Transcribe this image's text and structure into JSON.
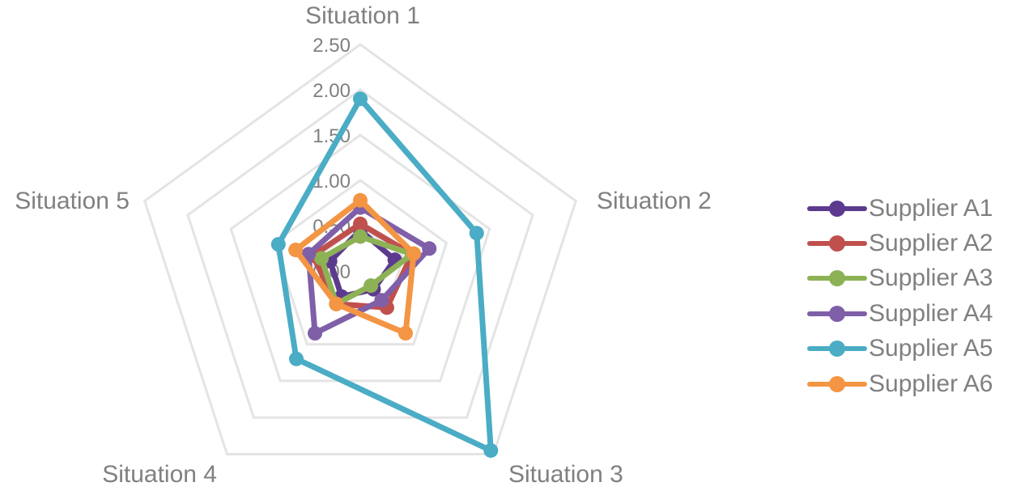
{
  "chart_data": {
    "type": "radar",
    "categories": [
      "Situation 1",
      "Situation 2",
      "Situation 3",
      "Situation 4",
      "Situation 5"
    ],
    "r_ticks": [
      "0.00",
      "0.50",
      "1.00",
      "1.50",
      "2.00",
      "2.50"
    ],
    "r_range": [
      0,
      2.5
    ],
    "grid": true,
    "legend_position": "right",
    "series": [
      {
        "name": "Supplier A1",
        "values": [
          0.45,
          0.4,
          0.25,
          0.35,
          0.35
        ],
        "color": "#5c3a8e"
      },
      {
        "name": "Supplier A2",
        "values": [
          0.52,
          0.6,
          0.5,
          0.45,
          0.55
        ],
        "color": "#c0504d"
      },
      {
        "name": "Supplier A3",
        "values": [
          0.38,
          0.6,
          0.2,
          0.45,
          0.45
        ],
        "color": "#8db255"
      },
      {
        "name": "Supplier A4",
        "values": [
          0.7,
          0.8,
          0.4,
          0.85,
          0.6
        ],
        "color": "#7e5fa8"
      },
      {
        "name": "Supplier A5",
        "values": [
          1.9,
          1.35,
          2.45,
          1.2,
          0.95
        ],
        "color": "#4aacc5"
      },
      {
        "name": "Supplier A6",
        "values": [
          0.78,
          0.62,
          0.85,
          0.45,
          0.75
        ],
        "color": "#f39543"
      }
    ]
  },
  "colors": {
    "grid": "#e4e4e4",
    "label": "#808080"
  }
}
